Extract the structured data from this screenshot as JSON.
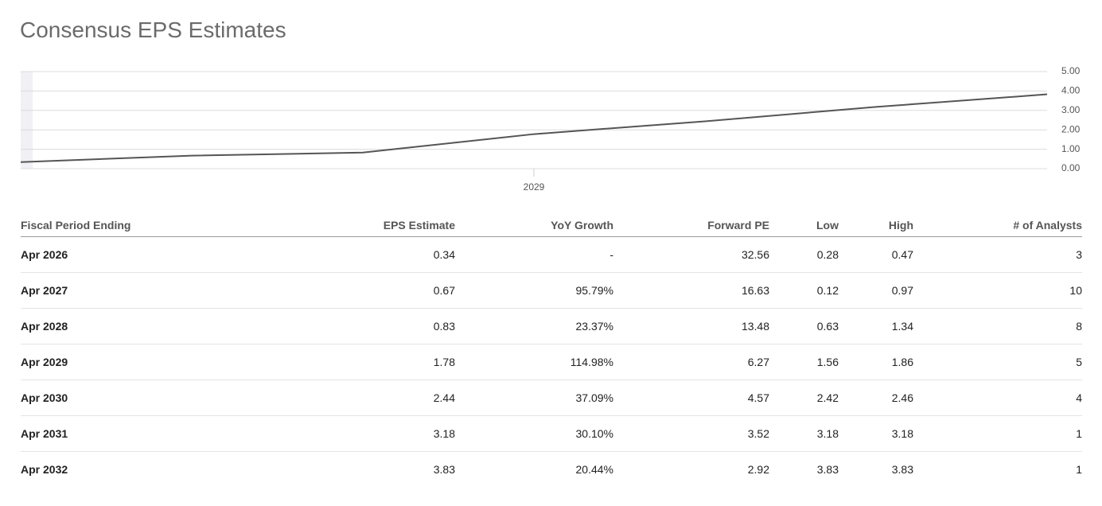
{
  "title": "Consensus EPS Estimates",
  "chart_data": {
    "type": "line",
    "x": [
      2026,
      2027,
      2028,
      2029,
      2030,
      2031,
      2032
    ],
    "values": [
      0.34,
      0.67,
      0.83,
      1.78,
      2.44,
      3.18,
      3.83
    ],
    "color": "#555555",
    "xlim": [
      2026,
      2032
    ],
    "xticks": [
      2029
    ],
    "ylim": [
      0,
      5
    ],
    "yticks": [
      {
        "value": 0,
        "label": "0.00"
      },
      {
        "value": 1,
        "label": "1.00"
      },
      {
        "value": 2,
        "label": "2.00"
      },
      {
        "value": 3,
        "label": "3.00"
      },
      {
        "value": 4,
        "label": "4.00"
      },
      {
        "value": 5,
        "label": "5.00"
      }
    ],
    "grid": true
  },
  "table": {
    "columns": [
      "Fiscal Period Ending",
      "EPS Estimate",
      "YoY Growth",
      "Forward PE",
      "Low",
      "High",
      "# of Analysts"
    ],
    "rows": [
      [
        "Apr 2026",
        "0.34",
        "-",
        "32.56",
        "0.28",
        "0.47",
        "3"
      ],
      [
        "Apr 2027",
        "0.67",
        "95.79%",
        "16.63",
        "0.12",
        "0.97",
        "10"
      ],
      [
        "Apr 2028",
        "0.83",
        "23.37%",
        "13.48",
        "0.63",
        "1.34",
        "8"
      ],
      [
        "Apr 2029",
        "1.78",
        "114.98%",
        "6.27",
        "1.56",
        "1.86",
        "5"
      ],
      [
        "Apr 2030",
        "2.44",
        "37.09%",
        "4.57",
        "2.42",
        "2.46",
        "4"
      ],
      [
        "Apr 2031",
        "3.18",
        "30.10%",
        "3.52",
        "3.18",
        "3.18",
        "1"
      ],
      [
        "Apr 2032",
        "3.83",
        "20.44%",
        "2.92",
        "3.83",
        "3.83",
        "1"
      ]
    ]
  }
}
